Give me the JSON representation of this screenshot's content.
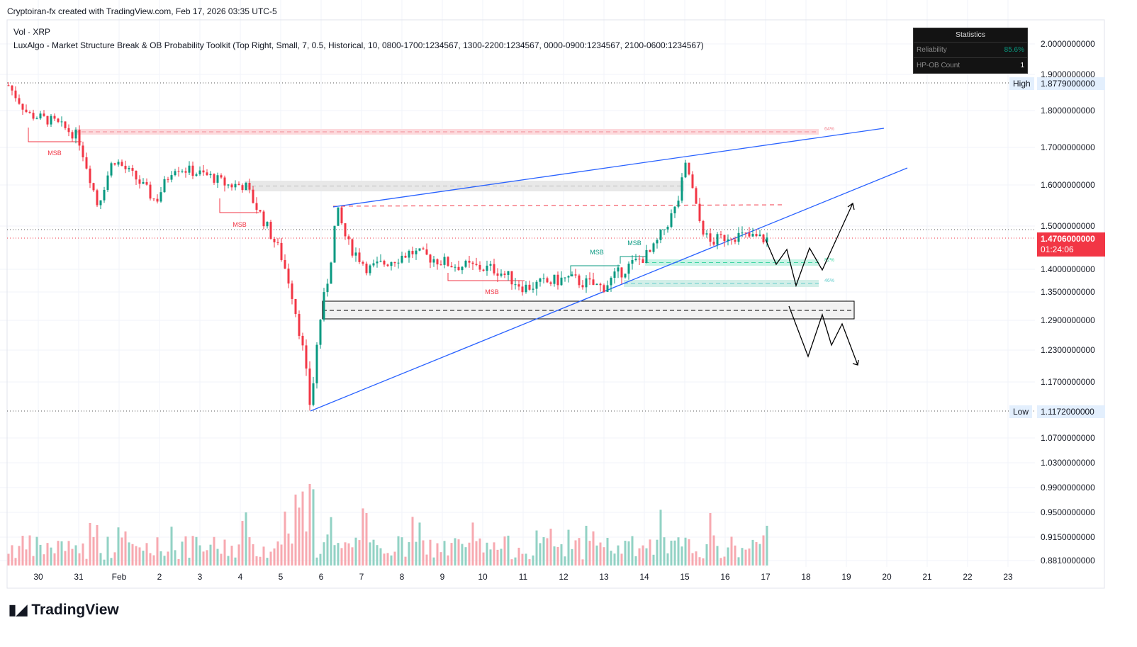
{
  "header": {
    "attribution": "Cryptoiran-fx created with TradingView.com, Feb 17, 2026 03:35 UTC-5"
  },
  "legend": {
    "line1": "Vol · XRP",
    "line2": "LuxAlgo - Market Structure Break & OB Probability Toolkit (Top Right, Small, 7, 0.5, Historical, 10, 0800-1700:1234567, 1300-2200:1234567, 0000-0900:1234567, 2100-0600:1234567)"
  },
  "stats": {
    "title": "Statistics",
    "rows": [
      {
        "label": "Reliability",
        "value": "85.6%"
      },
      {
        "label": "HP-OB Count",
        "value": "1"
      }
    ]
  },
  "markers": {
    "high_label": "High",
    "high_value": "1.8779000000",
    "low_label": "Low",
    "low_value": "1.1172000000",
    "last_price": "1.4706000000",
    "countdown": "01:24:06"
  },
  "annotations": {
    "msb": "MSB",
    "ob_top": "64%",
    "ob_mid": "82%",
    "ob_low": "46%"
  },
  "brand": "TradingView",
  "colors": {
    "up": "#089981",
    "down": "#f23645",
    "trend": "#2962ff",
    "last": "#f23645"
  },
  "chart_data": {
    "type": "candlestick",
    "symbol": "XRP",
    "y_ticks": [
      "2.0000000000",
      "1.9000000000",
      "1.8000000000",
      "1.7000000000",
      "1.6000000000",
      "1.5000000000",
      "1.4000000000",
      "1.3500000000",
      "1.2900000000",
      "1.2300000000",
      "1.1700000000",
      "1.0700000000",
      "1.0300000000",
      "0.9900000000",
      "0.9500000000",
      "0.9150000000",
      "0.8810000000"
    ],
    "x_ticks": [
      "30",
      "31",
      "Feb",
      "2",
      "3",
      "4",
      "5",
      "6",
      "7",
      "8",
      "9",
      "10",
      "11",
      "12",
      "13",
      "14",
      "15",
      "16",
      "17",
      "18",
      "19",
      "20",
      "21",
      "22",
      "23"
    ],
    "price_path": [
      [
        -0.74,
        1.87
      ],
      [
        -0.25,
        1.79
      ],
      [
        0.37,
        1.77
      ],
      [
        0.98,
        1.73
      ],
      [
        1.47,
        1.55
      ],
      [
        1.86,
        1.67
      ],
      [
        2.39,
        1.62
      ],
      [
        2.91,
        1.56
      ],
      [
        3.35,
        1.65
      ],
      [
        4.32,
        1.62
      ],
      [
        4.67,
        1.6
      ],
      [
        5.11,
        1.6
      ],
      [
        5.54,
        1.52
      ],
      [
        5.98,
        1.44
      ],
      [
        6.25,
        1.36
      ],
      [
        6.51,
        1.25
      ],
      [
        6.74,
        1.12
      ],
      [
        6.95,
        1.28
      ],
      [
        7.21,
        1.4
      ],
      [
        7.39,
        1.54
      ],
      [
        7.65,
        1.46
      ],
      [
        8.18,
        1.4
      ],
      [
        9.23,
        1.44
      ],
      [
        10.28,
        1.41
      ],
      [
        11.33,
        1.4
      ],
      [
        12.04,
        1.36
      ],
      [
        13.09,
        1.38
      ],
      [
        13.96,
        1.36
      ],
      [
        14.49,
        1.4
      ],
      [
        15.19,
        1.44
      ],
      [
        15.81,
        1.55
      ],
      [
        16.04,
        1.66
      ],
      [
        16.33,
        1.52
      ],
      [
        16.6,
        1.46
      ],
      [
        17.12,
        1.48
      ],
      [
        18.0,
        1.47
      ]
    ],
    "high": 1.8779,
    "low": 1.1172,
    "last": 1.4706
  }
}
